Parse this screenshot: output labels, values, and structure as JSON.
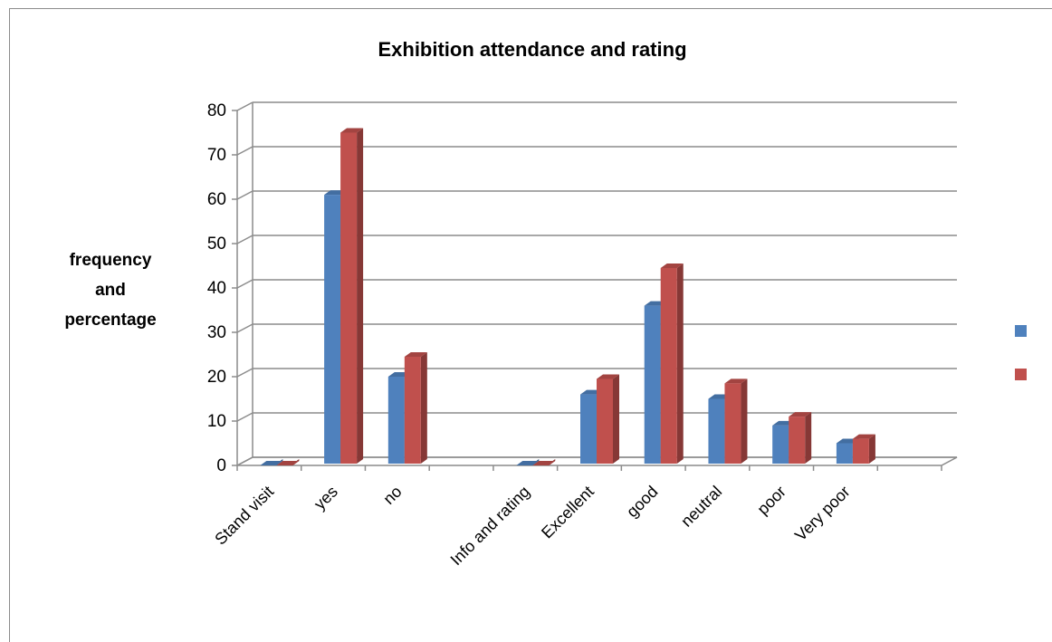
{
  "chart_data": {
    "type": "bar",
    "title": "Exhibition attendance and rating",
    "ylabel_lines": [
      "frequency",
      "and",
      "percentage"
    ],
    "xlabel": "",
    "categories": [
      "Stand visit",
      "yes",
      "no",
      "",
      "Info and rating",
      "Excellent",
      "good",
      "neutral",
      "poor",
      "Very poor",
      ""
    ],
    "series": [
      {
        "values": [
          0,
          61,
          20,
          null,
          0,
          16,
          36,
          15,
          9,
          5,
          null
        ],
        "color": "#4f81bd"
      },
      {
        "values": [
          0,
          75,
          24.5,
          null,
          0,
          19.5,
          44.5,
          18.5,
          11,
          6,
          null
        ],
        "color": "#c0504d"
      }
    ],
    "ylim": [
      0,
      80
    ],
    "yticks": [
      0,
      10,
      20,
      30,
      40,
      50,
      60,
      70,
      80
    ],
    "grid": true,
    "legend_position": "right",
    "style": "3d-clustered-column"
  }
}
